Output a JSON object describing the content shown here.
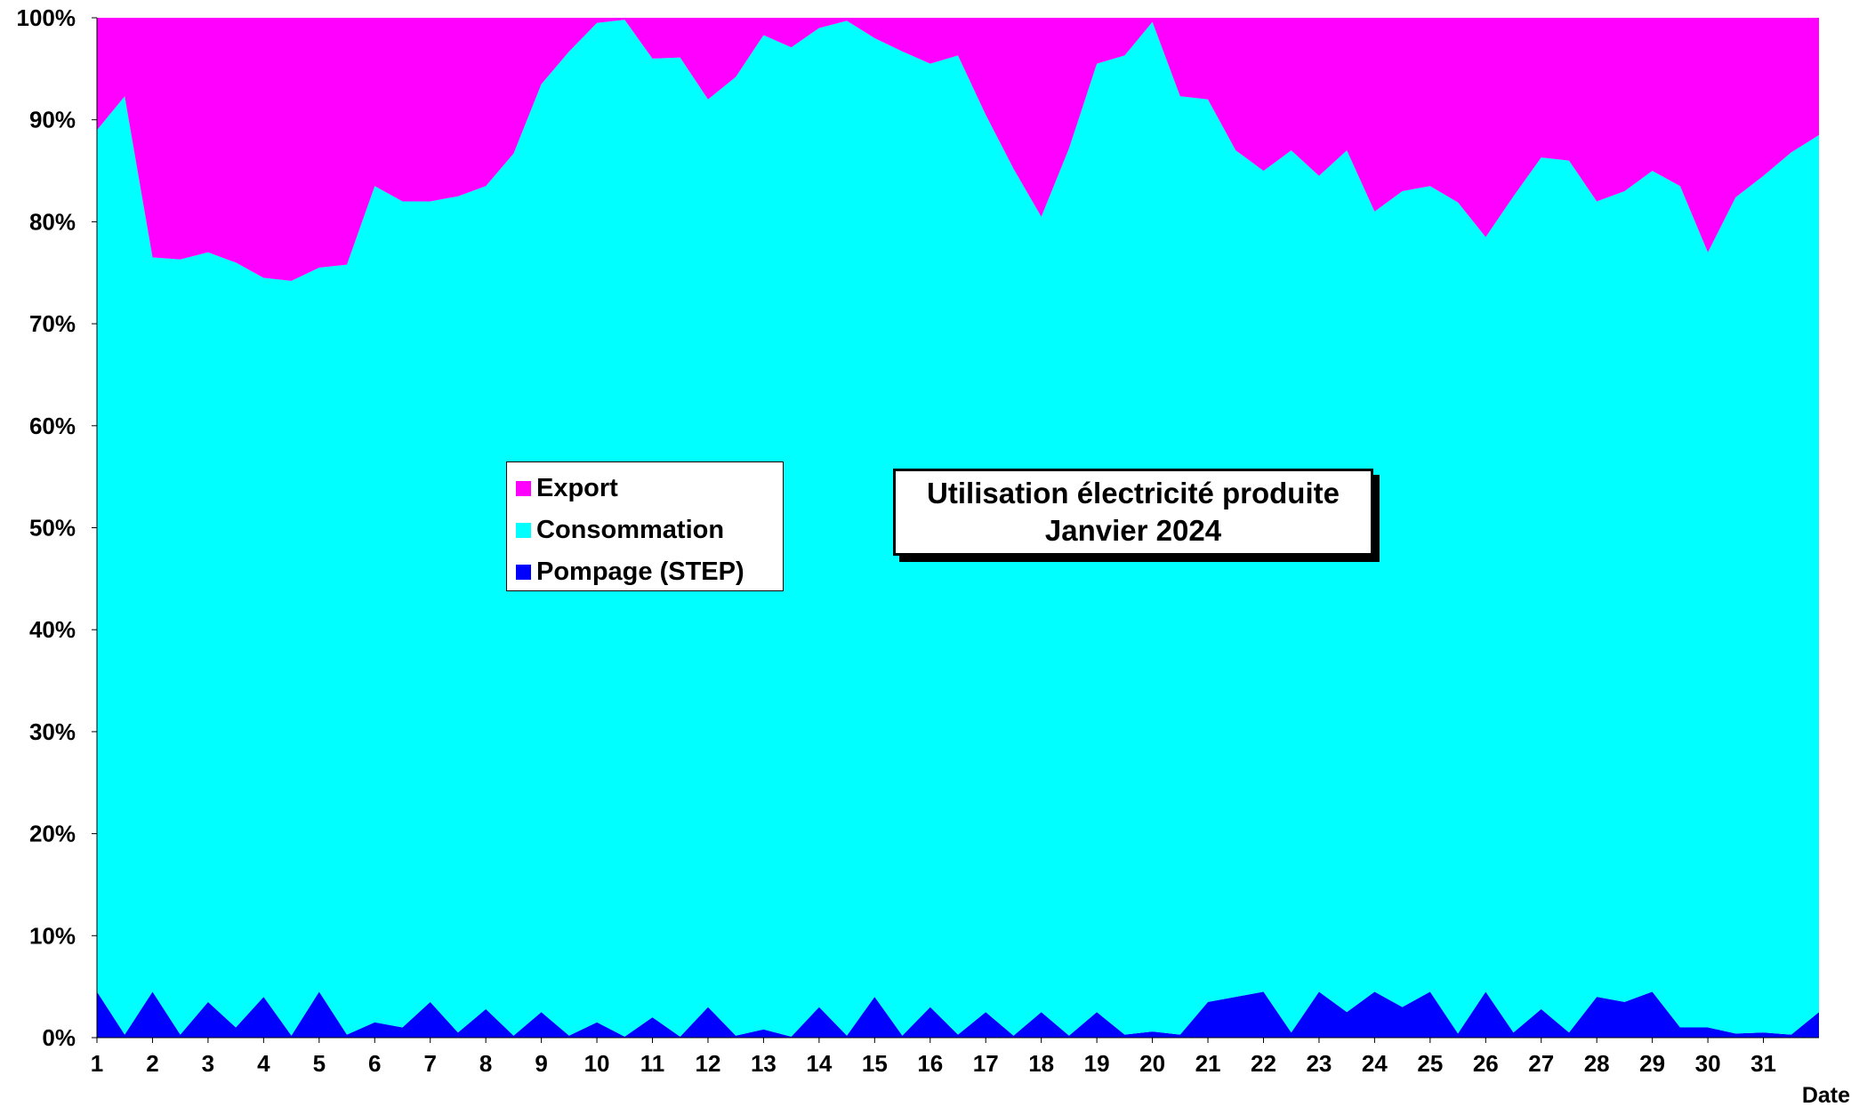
{
  "chart_data": {
    "type": "area",
    "stacked": true,
    "normalized": true,
    "title": "Utilisation électricité produite",
    "subtitle": "Janvier 2024",
    "xlabel": "Date",
    "ylabel": "",
    "ylim": [
      0,
      100
    ],
    "y_ticks": [
      "0%",
      "10%",
      "20%",
      "30%",
      "40%",
      "50%",
      "60%",
      "70%",
      "80%",
      "90%",
      "100%"
    ],
    "x_ticks": [
      "1",
      "2",
      "3",
      "4",
      "5",
      "6",
      "7",
      "8",
      "9",
      "10",
      "11",
      "12",
      "13",
      "14",
      "15",
      "16",
      "17",
      "18",
      "19",
      "20",
      "21",
      "22",
      "23",
      "24",
      "25",
      "26",
      "27",
      "28",
      "29",
      "30",
      "31"
    ],
    "legend_position": "center-left",
    "grid": false,
    "series_order_bottom_to_top": [
      "Pompage (STEP)",
      "Consommation",
      "Export"
    ],
    "colors": {
      "Pompage (STEP)": "#0000FF",
      "Consommation": "#00FFFF",
      "Export": "#FF00FF"
    },
    "x_day": [
      1,
      1.5,
      2,
      2.5,
      3,
      3.5,
      4,
      4.5,
      5,
      5.5,
      6,
      6.5,
      7,
      7.5,
      8,
      8.5,
      9,
      9.5,
      10,
      10.5,
      11,
      11.5,
      12,
      12.5,
      13,
      13.5,
      14,
      14.5,
      15,
      15.5,
      16,
      16.5,
      17,
      17.5,
      18,
      18.5,
      19,
      19.5,
      20,
      20.5,
      21,
      21.5,
      22,
      22.5,
      23,
      23.5,
      24,
      24.5,
      25,
      25.5,
      26,
      26.5,
      27,
      27.5,
      28,
      28.5,
      29,
      29.5,
      30,
      30.5,
      31,
      31.5,
      32
    ],
    "series": [
      {
        "name": "Pompage (STEP)",
        "values": [
          4.5,
          0.3,
          4.5,
          0.3,
          3.5,
          1.0,
          4.0,
          0.2,
          4.5,
          0.3,
          1.5,
          1.0,
          3.5,
          0.5,
          2.8,
          0.2,
          2.5,
          0.2,
          1.5,
          0.1,
          2.0,
          0.1,
          3.0,
          0.2,
          0.8,
          0.1,
          3.0,
          0.2,
          4.0,
          0.2,
          3.0,
          0.3,
          2.5,
          0.2,
          2.5,
          0.2,
          2.5,
          0.3,
          0.6,
          0.3,
          3.5,
          4.0,
          4.5,
          0.5,
          4.5,
          2.5,
          4.5,
          3.0,
          4.5,
          0.4,
          4.5,
          0.5,
          2.8,
          0.5,
          4.0,
          3.5,
          4.5,
          1.0,
          1.0,
          0.4,
          0.5,
          0.3,
          2.5
        ]
      },
      {
        "name": "Consommation",
        "values": [
          84.5,
          92.0,
          72.0,
          76.0,
          73.5,
          75.0,
          70.5,
          74.0,
          71.0,
          75.5,
          82.0,
          81.0,
          78.5,
          82.0,
          80.7,
          86.5,
          91.0,
          96.5,
          98.0,
          99.7,
          94.0,
          96.0,
          89.0,
          94.0,
          97.5,
          97.0,
          96.0,
          99.5,
          94.0,
          96.5,
          92.5,
          96.0,
          88.0,
          85.0,
          78.0,
          87.0,
          93.0,
          96.0,
          99.0,
          92.0,
          88.5,
          83.0,
          80.5,
          86.5,
          80.0,
          84.5,
          76.5,
          80.0,
          79.0,
          81.5,
          74.0,
          82.0,
          83.5,
          85.5,
          78.0,
          79.5,
          80.5,
          82.5,
          76.0,
          82.0,
          84.0,
          86.5,
          86.0
        ]
      },
      {
        "name": "Export",
        "values": [
          11.0,
          7.7,
          23.5,
          23.7,
          23.0,
          24.0,
          25.5,
          25.8,
          24.5,
          24.2,
          16.5,
          18.0,
          18.0,
          17.5,
          16.5,
          13.3,
          6.5,
          3.3,
          0.5,
          0.2,
          4.0,
          3.9,
          8.0,
          5.8,
          1.7,
          2.9,
          1.0,
          0.3,
          2.0,
          3.3,
          4.5,
          3.7,
          9.5,
          14.8,
          19.5,
          12.8,
          4.5,
          3.7,
          0.4,
          7.7,
          8.0,
          13.0,
          15.0,
          13.0,
          15.5,
          13.0,
          19.0,
          17.0,
          16.5,
          18.1,
          21.5,
          17.5,
          13.7,
          14.0,
          18.0,
          17.0,
          15.0,
          16.5,
          23.0,
          17.6,
          15.5,
          13.2,
          11.5
        ]
      }
    ]
  }
}
